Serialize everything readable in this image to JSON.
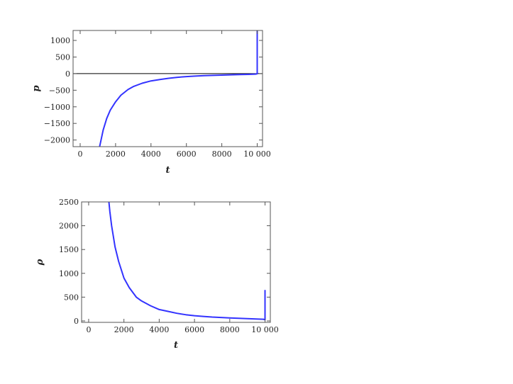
{
  "chart_data": [
    {
      "type": "line",
      "xlabel": "t",
      "ylabel": "p",
      "xlim": [
        -400,
        10300
      ],
      "ylim": [
        -2200,
        1300
      ],
      "xticks": [
        0,
        2000,
        4000,
        6000,
        8000,
        10000
      ],
      "xtick_labels": [
        "0",
        "2000",
        "4000",
        "6000",
        "8000",
        "10 000"
      ],
      "yticks": [
        -2000,
        -1500,
        -1000,
        -500,
        0,
        500,
        1000
      ],
      "ytick_labels": [
        "−2000",
        "−1500",
        "−1000",
        "−500",
        "0",
        "500",
        "1000"
      ],
      "zero_line": true,
      "series": [
        {
          "color": "#3333ff",
          "x": [
            1100,
            1200,
            1300,
            1500,
            1700,
            2000,
            2300,
            2700,
            3000,
            3500,
            4000,
            4500,
            5000,
            5500,
            6000,
            6500,
            7000,
            7500,
            8000,
            8500,
            9000,
            9500,
            9900,
            10000,
            10000
          ],
          "y": [
            -2200,
            -1950,
            -1700,
            -1350,
            -1100,
            -850,
            -650,
            -480,
            -390,
            -290,
            -220,
            -180,
            -140,
            -110,
            -90,
            -75,
            -62,
            -52,
            -44,
            -37,
            -30,
            -24,
            -15,
            -5,
            1300
          ]
        }
      ]
    },
    {
      "type": "line",
      "xlabel": "t",
      "ylabel": "ρ",
      "xlim": [
        -400,
        10300
      ],
      "ylim": [
        -30,
        2500
      ],
      "xticks": [
        0,
        2000,
        4000,
        6000,
        8000,
        10000
      ],
      "xtick_labels": [
        "0",
        "2000",
        "4000",
        "6000",
        "8000",
        "10 000"
      ],
      "yticks": [
        0,
        500,
        1000,
        1500,
        2000,
        2500
      ],
      "ytick_labels": [
        "0",
        "500",
        "1000",
        "1500",
        "2000",
        "2500"
      ],
      "zero_line": false,
      "series": [
        {
          "color": "#3333ff",
          "x": [
            1150,
            1200,
            1300,
            1500,
            1700,
            2000,
            2300,
            2700,
            3000,
            3500,
            4000,
            4500,
            5000,
            5500,
            6000,
            6500,
            7000,
            7500,
            8000,
            8500,
            9000,
            9500,
            9900,
            9950,
            10000,
            10000
          ],
          "y": [
            2500,
            2300,
            2000,
            1550,
            1250,
            900,
            700,
            500,
            420,
            320,
            240,
            200,
            160,
            130,
            110,
            95,
            82,
            72,
            62,
            55,
            48,
            42,
            35,
            30,
            25,
            650
          ]
        }
      ]
    }
  ]
}
